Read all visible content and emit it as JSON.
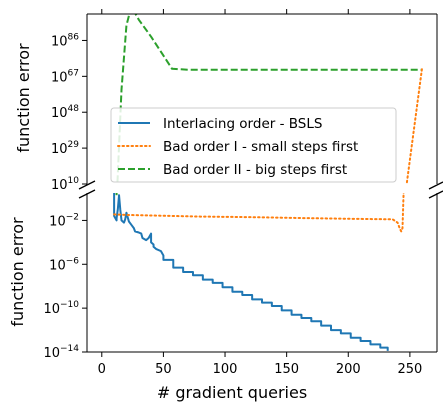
{
  "chart_data": {
    "type": "line",
    "broken_axis": true,
    "xlabel": "# gradient queries",
    "xlim": [
      -12,
      272
    ],
    "xticks": [
      0,
      50,
      100,
      150,
      200,
      250
    ],
    "panels": [
      {
        "name": "upper",
        "ylabel": "function error",
        "yscale": "log",
        "ylim_exp": [
          10,
          100
        ],
        "yticks_exp": [
          10,
          29,
          48,
          67,
          86
        ]
      },
      {
        "name": "lower",
        "ylabel": "function error",
        "yscale": "log",
        "ylim_exp": [
          -14,
          0.5
        ],
        "yticks_exp": [
          -14,
          -10,
          -6,
          -2
        ]
      }
    ],
    "legend": {
      "placement": "center-left of upper panel"
    },
    "series": [
      {
        "name": "Interlacing order - BSLS",
        "color": "#1f77b4",
        "style": "solid",
        "x": [
          10,
          10,
          12,
          12,
          13,
          14,
          15,
          16,
          18,
          19,
          20,
          22,
          24,
          26,
          27,
          30,
          32,
          33,
          36,
          38,
          40,
          40,
          42,
          42,
          44,
          48,
          50,
          50,
          58,
          58,
          66,
          66,
          74,
          74,
          82,
          82,
          90,
          90,
          98,
          98,
          106,
          106,
          114,
          114,
          122,
          122,
          130,
          130,
          138,
          138,
          146,
          146,
          154,
          154,
          162,
          162,
          170,
          170,
          178,
          178,
          186,
          186,
          194,
          194,
          202,
          202,
          210,
          210,
          218,
          218,
          226,
          226,
          232,
          232
        ],
        "y_log10": [
          0.5,
          -1.6,
          -2.0,
          -1.8,
          -1.0,
          0.3,
          -1.0,
          -2.0,
          -2.2,
          -1.9,
          -1.3,
          -2.1,
          -2.4,
          -2.7,
          -3.0,
          -3.1,
          -3.2,
          -3.6,
          -3.8,
          -3.6,
          -3.2,
          -4.0,
          -4.2,
          -4.4,
          -4.6,
          -4.8,
          -5.2,
          -5.6,
          -5.6,
          -6.3,
          -6.3,
          -6.7,
          -6.7,
          -7.0,
          -7.0,
          -7.4,
          -7.4,
          -7.7,
          -7.7,
          -8.1,
          -8.1,
          -8.5,
          -8.5,
          -8.8,
          -8.8,
          -9.2,
          -9.2,
          -9.5,
          -9.5,
          -9.8,
          -9.8,
          -10.2,
          -10.2,
          -10.6,
          -10.6,
          -10.9,
          -10.9,
          -11.2,
          -11.2,
          -11.6,
          -11.6,
          -12.0,
          -12.0,
          -12.3,
          -12.3,
          -12.7,
          -12.7,
          -13.0,
          -13.0,
          -13.3,
          -13.3,
          -13.6,
          -13.6,
          -13.9
        ]
      },
      {
        "name": "Bad order I - small steps first",
        "color": "#ff7f0e",
        "style": "dotted",
        "x": [
          10,
          20,
          40,
          80,
          120,
          160,
          200,
          236,
          240,
          242,
          243,
          244,
          247,
          260
        ],
        "y_log10": [
          -1.45,
          -1.5,
          -1.55,
          -1.65,
          -1.7,
          -1.78,
          -1.85,
          -1.9,
          -2.2,
          -2.8,
          -3.0,
          -2.7,
          8,
          72
        ]
      },
      {
        "name": "Bad order II - big steps first",
        "color": "#2ca02c",
        "style": "dashed",
        "x": [
          12,
          16,
          20,
          24,
          30,
          40,
          50,
          57,
          70,
          100,
          150,
          200,
          250,
          259
        ],
        "y_log10": [
          0.3,
          60,
          94,
          104,
          97,
          88,
          78,
          71,
          70.5,
          70.5,
          70.5,
          70.5,
          70.5,
          70.5
        ]
      }
    ]
  }
}
